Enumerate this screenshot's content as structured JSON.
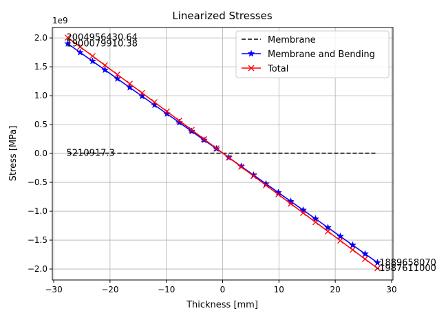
{
  "chart_data": {
    "type": "line",
    "title": "Linearized Stresses",
    "x_label": "Thickness [mm]",
    "y_label": "Stress [MPa]",
    "y_offset_label": "1e9",
    "x": [
      -27.5,
      -25.3,
      -23.1,
      -20.9,
      -18.7,
      -16.5,
      -14.3,
      -12.1,
      -9.9,
      -7.7,
      -5.5,
      -3.3,
      -1.1,
      1.1,
      3.3,
      5.5,
      7.7,
      9.9,
      12.1,
      14.3,
      16.5,
      18.7,
      20.9,
      23.1,
      25.3,
      27.5
    ],
    "series": [
      {
        "name": "Membrane",
        "color": "#000000",
        "linestyle": "dashed",
        "marker": "none",
        "values": [
          0.0052109173,
          0.0052109173,
          0.0052109173,
          0.0052109173,
          0.0052109173,
          0.0052109173,
          0.0052109173,
          0.0052109173,
          0.0052109173,
          0.0052109173,
          0.0052109173,
          0.0052109173,
          0.0052109173,
          0.0052109173,
          0.0052109173,
          0.0052109173,
          0.0052109173,
          0.0052109173,
          0.0052109173,
          0.0052109173,
          0.0052109173,
          0.0052109173,
          0.0052109173,
          0.0052109173,
          0.0052109173,
          0.0052109173
        ],
        "value_labels": [
          "5210917.3",
          null,
          null,
          null,
          null,
          null,
          null,
          null,
          null,
          null,
          null,
          null,
          null,
          null,
          null,
          null,
          null,
          null,
          null,
          null,
          null,
          null,
          null,
          null,
          null,
          null
        ]
      },
      {
        "name": "Membrane and Bending",
        "color": "#0000ff",
        "linestyle": "solid",
        "marker": "star",
        "values": [
          1.90007991038,
          1.74849,
          1.5969,
          1.44531,
          1.29372,
          1.14213,
          0.99054,
          0.83895,
          0.68736,
          0.53577,
          0.38418,
          0.23259,
          0.081,
          -0.07059,
          -0.22218,
          -0.37377,
          -0.52536,
          -0.67695,
          -0.82854,
          -0.98013,
          -1.13172,
          -1.28331,
          -1.4349,
          -1.58649,
          -1.73808,
          -1.88965807
        ],
        "value_labels": [
          "1900079910.38",
          null,
          null,
          null,
          null,
          null,
          null,
          null,
          null,
          null,
          null,
          null,
          null,
          null,
          null,
          null,
          null,
          null,
          null,
          null,
          null,
          null,
          null,
          null,
          null,
          "-1889658070"
        ]
      },
      {
        "name": "Total",
        "color": "#ff0000",
        "linestyle": "solid",
        "marker": "x",
        "values": [
          2.00495643064,
          1.84526,
          1.68555,
          1.52585,
          1.36615,
          1.20645,
          1.04674,
          0.88704,
          0.72734,
          0.56763,
          0.40793,
          0.24823,
          0.08853,
          -0.07118,
          -0.23088,
          -0.39058,
          -0.55029,
          -0.70999,
          -0.86969,
          -1.02939,
          -1.1891,
          -1.3488,
          -1.5085,
          -1.66821,
          -1.82791,
          -1.987611
        ],
        "value_labels": [
          "2004956430.64",
          null,
          null,
          null,
          null,
          null,
          null,
          null,
          null,
          null,
          null,
          null,
          null,
          null,
          null,
          null,
          null,
          null,
          null,
          null,
          null,
          null,
          null,
          null,
          null,
          "-1987611000"
        ]
      }
    ],
    "xlim": [
      -30.25,
      30.25
    ],
    "ylim": [
      -2.19,
      2.18
    ],
    "xticks": [
      {
        "value": -30,
        "label": "−30"
      },
      {
        "value": -20,
        "label": "−20"
      },
      {
        "value": -10,
        "label": "−10"
      },
      0,
      10,
      20,
      30
    ],
    "yticks": [
      {
        "value": -2,
        "label": "−2.0"
      },
      {
        "value": -1.5,
        "label": "−1.5"
      },
      {
        "value": -1,
        "label": "−1.0"
      },
      {
        "value": -0.5,
        "label": "−0.5"
      },
      {
        "value": 0,
        "label": "0.0"
      },
      0.5,
      {
        "value": 1,
        "label": "1.0"
      },
      1.5,
      {
        "value": 2,
        "label": "2.0"
      }
    ],
    "grid": true,
    "legend": "upper right"
  }
}
